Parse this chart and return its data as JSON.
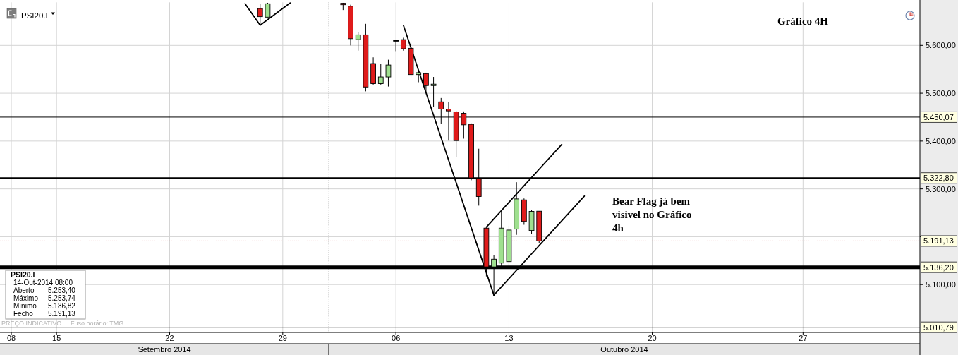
{
  "chart_data": {
    "type": "candlestick",
    "title": "Gráfico 4H",
    "annotations": [
      "PSI20.I",
      "Bear Flag já bem visivel no Gráfico 4h",
      "Setembro 2014",
      "Outubro 2014",
      "PSI20.I",
      "14-Out-2014 08:00",
      "Aberto",
      "5.253,40",
      "Máximo",
      "5.253,74",
      "Mínimo",
      "5.186,82",
      "Fecho",
      "5.191,13",
      "PREÇO INDICATIVO",
      "Fuso horário: TMG"
    ],
    "categories": [
      null,
      "08",
      null,
      null,
      null,
      null,
      null,
      "15",
      null,
      null,
      null,
      null,
      null,
      null,
      null,
      null,
      null,
      null,
      null,
      null,
      null,
      null,
      "22",
      null,
      null,
      null,
      null,
      null,
      null,
      null,
      null,
      null,
      null,
      null,
      null,
      null,
      null,
      "29",
      null,
      null,
      null,
      null,
      null,
      null,
      null,
      null,
      null,
      null,
      null,
      null,
      null,
      null,
      "06",
      null,
      null,
      null,
      null,
      null,
      null,
      null,
      null,
      null,
      null,
      null,
      null,
      null,
      null,
      "13",
      null,
      null,
      null,
      null,
      null,
      null,
      null,
      null,
      null,
      null,
      null,
      null,
      null,
      null,
      null,
      null,
      null,
      null,
      "20",
      null,
      null,
      null,
      null,
      null,
      null,
      null,
      null,
      null,
      null,
      null,
      null,
      null,
      null,
      null,
      null,
      null,
      null,
      null,
      "27",
      null,
      null,
      null,
      null,
      null,
      null,
      null,
      null,
      null,
      null,
      null,
      null,
      null,
      null,
      null
    ],
    "ohlc": [
      null,
      null,
      null,
      null,
      null,
      null,
      null,
      null,
      null,
      null,
      null,
      null,
      null,
      null,
      null,
      null,
      null,
      null,
      null,
      null,
      null,
      null,
      null,
      null,
      null,
      null,
      null,
      null,
      null,
      null,
      null,
      null,
      null,
      null,
      [
        5677,
        5686,
        5642,
        5660
      ],
      [
        5659,
        5689,
        5659,
        5687
      ],
      null,
      null,
      null,
      null,
      null,
      null,
      null,
      null,
      null,
      [
        5688,
        5689,
        5674,
        5685
      ],
      [
        5682,
        5685,
        5600,
        5614
      ],
      [
        5612,
        5627,
        5589,
        5622
      ],
      [
        5622,
        5645,
        5504,
        5513
      ],
      [
        5562,
        5575,
        5518,
        5520
      ],
      [
        5520,
        5561,
        5518,
        5534
      ],
      [
        5534,
        5570,
        5514,
        5559
      ],
      [
        5610,
        5610,
        5588,
        5610
      ],
      [
        5612,
        5616,
        5589,
        5593
      ],
      [
        5594,
        5610,
        5532,
        5539
      ],
      [
        5539,
        5547,
        5523,
        5543
      ],
      [
        5541,
        5543,
        5503,
        5516
      ],
      [
        5516,
        5534,
        5471,
        5519
      ],
      [
        5482,
        5490,
        5436,
        5467
      ],
      [
        5467,
        5481,
        5401,
        5463
      ],
      [
        5461,
        5463,
        5366,
        5401
      ],
      [
        5458,
        5462,
        5405,
        5434
      ],
      [
        5435,
        5437,
        5318,
        5323
      ],
      [
        5321,
        5384,
        5265,
        5284
      ],
      [
        5218,
        5219,
        5117,
        5137
      ],
      [
        5137,
        5161,
        5078,
        5153
      ],
      [
        5145,
        5251,
        5137,
        5218
      ],
      [
        5148,
        5223,
        5134,
        5214
      ],
      [
        5216,
        5314,
        5204,
        5279
      ],
      [
        5277,
        5280,
        5225,
        5232
      ],
      [
        5213,
        5256,
        5206,
        5253
      ],
      [
        5253.4,
        5253.74,
        5186.82,
        5191.13
      ],
      null,
      null,
      null,
      null,
      null,
      null,
      null,
      null,
      null,
      null,
      null,
      null,
      null,
      null,
      null,
      null,
      null,
      null,
      null,
      null,
      null,
      null,
      null,
      null,
      null,
      null,
      null,
      null,
      null,
      null,
      null,
      null,
      null,
      null,
      null,
      null,
      null,
      null,
      null,
      null,
      null,
      null,
      null,
      null,
      null,
      null,
      null,
      null,
      null,
      null
    ],
    "colors": [
      null,
      null,
      null,
      null,
      null,
      null,
      null,
      null,
      null,
      null,
      null,
      null,
      null,
      null,
      null,
      null,
      null,
      null,
      null,
      null,
      null,
      null,
      null,
      null,
      null,
      null,
      null,
      null,
      null,
      null,
      null,
      null,
      null,
      null,
      "#e01b1b",
      "#9fe08f",
      null,
      null,
      null,
      null,
      null,
      null,
      null,
      null,
      null,
      "#e01b1b",
      "#e01b1b",
      "#9fe08f",
      "#e01b1b",
      "#e01b1b",
      "#9fe08f",
      "#9fe08f",
      "#000000",
      "#e01b1b",
      "#e01b1b",
      "#9fe08f",
      "#e01b1b",
      "#9fe08f",
      "#e01b1b",
      "#e01b1b",
      "#e01b1b",
      "#e01b1b",
      "#e01b1b",
      "#e01b1b",
      "#e01b1b",
      "#9fe08f",
      "#9fe08f",
      "#9fe08f",
      "#9fe08f",
      "#e01b1b",
      "#9fe08f",
      "#e01b1b",
      null,
      null,
      null,
      null,
      null,
      null,
      null,
      null,
      null,
      null,
      null,
      null,
      null,
      null,
      null,
      null,
      null,
      null,
      null,
      null,
      null,
      null,
      null,
      null,
      null,
      null,
      null,
      null,
      null,
      null,
      null,
      null,
      null,
      null,
      null,
      null,
      null,
      null,
      null,
      null,
      null,
      null,
      null,
      null,
      null,
      null,
      null,
      null,
      null,
      null
    ],
    "series": [
      {
        "type": "line",
        "color": "#000000",
        "values": [
          null,
          null,
          null,
          null,
          null,
          null,
          null,
          null,
          null,
          null,
          null,
          null,
          null,
          null,
          null,
          null,
          null,
          null,
          null,
          null,
          null,
          null,
          null,
          null,
          null,
          null,
          null,
          null,
          null,
          null,
          null,
          null,
          5687,
          null,
          5642,
          null,
          null,
          null,
          5689,
          null,
          null,
          null,
          null,
          null,
          null,
          null,
          null,
          null,
          null,
          null,
          null,
          null,
          null,
          null,
          null,
          null,
          null,
          null,
          null,
          null,
          null,
          null,
          null,
          null,
          null,
          null,
          null,
          null,
          null,
          null,
          null,
          null,
          null,
          null,
          null,
          null,
          null,
          null,
          null,
          null,
          null,
          null,
          null,
          null,
          null,
          null,
          null,
          null,
          null,
          null,
          null,
          null,
          null,
          null,
          null,
          null,
          null,
          null,
          null,
          null,
          null,
          null,
          null,
          null,
          null,
          null,
          null,
          null,
          null,
          null,
          null,
          null,
          null,
          null,
          null,
          null,
          null,
          null,
          null,
          null,
          null,
          null
        ]
      },
      {
        "type": "line",
        "color": "#000000",
        "values": [
          null,
          null,
          null,
          null,
          null,
          null,
          null,
          null,
          null,
          null,
          null,
          null,
          null,
          null,
          null,
          null,
          null,
          null,
          null,
          null,
          null,
          null,
          null,
          null,
          null,
          null,
          null,
          null,
          null,
          null,
          null,
          null,
          null,
          null,
          null,
          null,
          null,
          null,
          null,
          null,
          null,
          null,
          null,
          null,
          null,
          null,
          null,
          null,
          null,
          null,
          null,
          null,
          null,
          5642,
          null,
          null,
          null,
          null,
          null,
          null,
          null,
          null,
          null,
          null,
          null,
          5078,
          null,
          null,
          null,
          null,
          null,
          null,
          null,
          null,
          null,
          null,
          null,
          null,
          null,
          null,
          null,
          null,
          null,
          null,
          null,
          null,
          null,
          null,
          null,
          null,
          null,
          null,
          null,
          null,
          null,
          null,
          null,
          null,
          null,
          null,
          null,
          null,
          null,
          null,
          null,
          null,
          null,
          null,
          null,
          null,
          null,
          null,
          null,
          null,
          null,
          null,
          null,
          null,
          null,
          null,
          null,
          null
        ]
      },
      {
        "type": "line",
        "color": "#000000",
        "values": [
          null,
          null,
          null,
          null,
          null,
          null,
          null,
          null,
          null,
          null,
          null,
          null,
          null,
          null,
          null,
          null,
          null,
          null,
          null,
          null,
          null,
          null,
          null,
          null,
          null,
          null,
          null,
          null,
          null,
          null,
          null,
          null,
          null,
          null,
          null,
          null,
          null,
          null,
          null,
          null,
          null,
          null,
          null,
          null,
          null,
          null,
          null,
          null,
          null,
          null,
          null,
          null,
          null,
          null,
          null,
          null,
          null,
          null,
          null,
          null,
          null,
          null,
          null,
          null,
          5220,
          null,
          null,
          null,
          null,
          null,
          null,
          null,
          null,
          null,
          5393,
          null,
          null,
          null,
          null,
          null,
          null,
          null,
          null,
          null,
          null,
          null,
          null,
          null,
          null,
          null,
          null,
          null,
          null,
          null,
          null,
          null,
          null,
          null,
          null,
          null,
          null,
          null,
          null,
          null,
          null,
          null,
          null,
          null,
          null,
          null,
          null,
          null,
          null,
          null,
          null,
          null,
          null,
          null,
          null,
          null,
          null,
          null
        ]
      },
      {
        "type": "line",
        "color": "#000000",
        "values": [
          null,
          null,
          null,
          null,
          null,
          null,
          null,
          null,
          null,
          null,
          null,
          null,
          null,
          null,
          null,
          null,
          null,
          null,
          null,
          null,
          null,
          null,
          null,
          null,
          null,
          null,
          null,
          null,
          null,
          null,
          null,
          null,
          null,
          null,
          null,
          null,
          null,
          null,
          null,
          null,
          null,
          null,
          null,
          null,
          null,
          null,
          null,
          null,
          null,
          null,
          null,
          null,
          null,
          null,
          null,
          null,
          null,
          null,
          null,
          null,
          null,
          null,
          null,
          null,
          null,
          5078,
          null,
          null,
          null,
          null,
          null,
          null,
          null,
          null,
          null,
          null,
          null,
          5285,
          null,
          null,
          null,
          null,
          null,
          null,
          null,
          null,
          null,
          null,
          null,
          null,
          null,
          null,
          null,
          null,
          null,
          null,
          null,
          null,
          null,
          null,
          null,
          null,
          null,
          null,
          null,
          null,
          null,
          null,
          null,
          null,
          null,
          null,
          null,
          null,
          null,
          null,
          null,
          null,
          null,
          null,
          null,
          null
        ]
      }
    ],
    "ylim": [
      5000,
      5690
    ],
    "yticks": [
      {
        "value": 5600,
        "label": "5.600,00"
      },
      {
        "value": 5500,
        "label": "5.500,00"
      },
      {
        "value": 5400,
        "label": "5.400,00"
      },
      {
        "value": 5300,
        "label": "5.300,00"
      },
      {
        "value": 5200,
        "label": null
      },
      {
        "value": 5100,
        "label": "5.100,00"
      }
    ],
    "ref_lines": [
      {
        "axis": "y",
        "value": 5450.07,
        "label": "5.450,07",
        "color": "#000000"
      },
      {
        "axis": "y",
        "value": 5322.8,
        "label": "5.322,80",
        "color": "#000000"
      },
      {
        "axis": "y",
        "value": 5191.13,
        "label": "5.191,13",
        "color": "#cc3333",
        "line_style": "dotted"
      },
      {
        "axis": "y",
        "value": 5136.2,
        "label": "5.136,20",
        "color": "#000000"
      },
      {
        "axis": "y",
        "value": 5010.79,
        "label": "5.010,79",
        "color": "#000000"
      }
    ],
    "grid": true
  }
}
